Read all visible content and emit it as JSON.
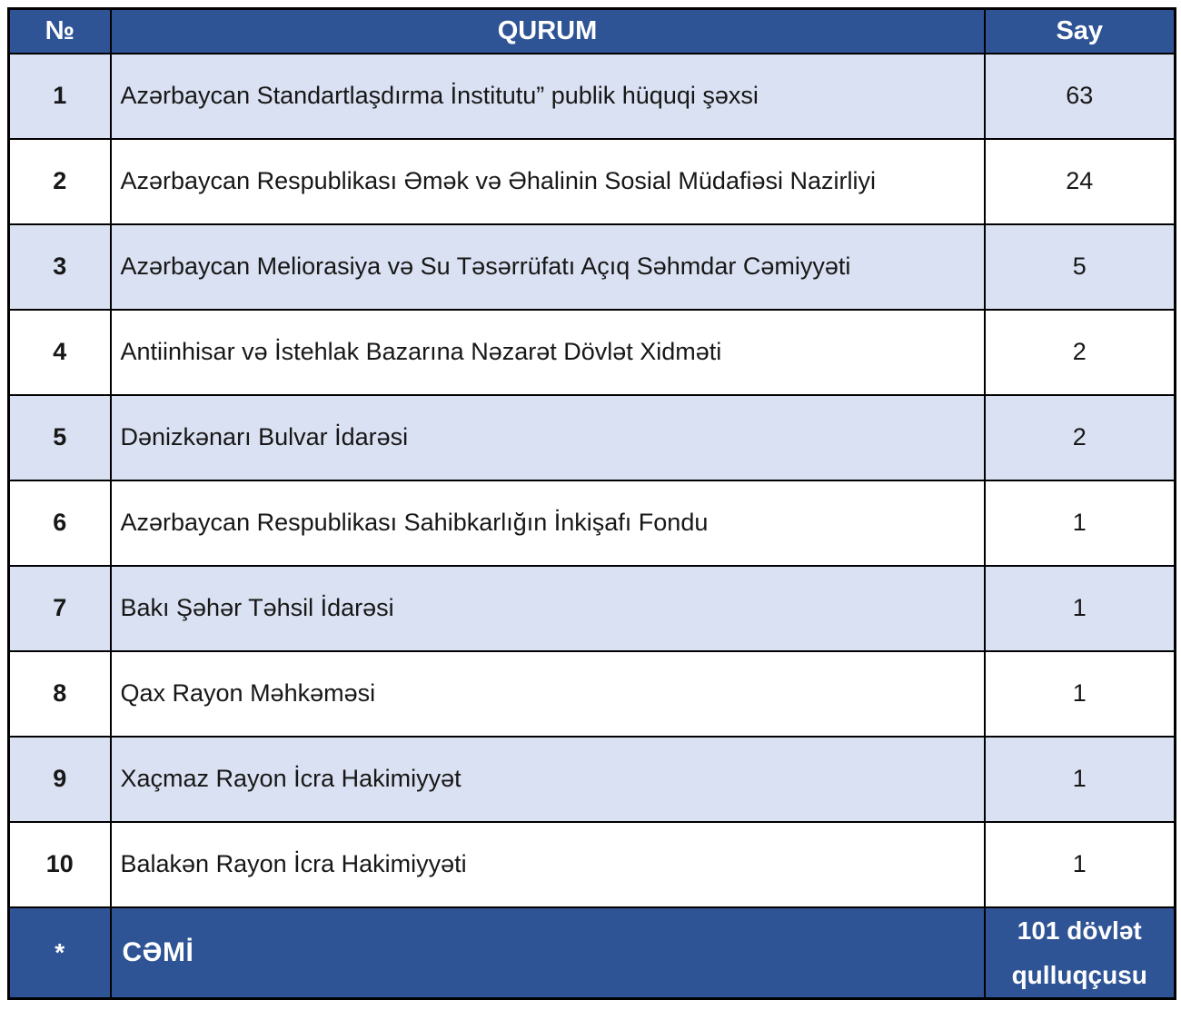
{
  "colors": {
    "header_bg": "#2F5496",
    "header_text": "#FFFFFF",
    "row_alt_bg": "#DAE1F2",
    "row_bg": "#FFFFFF",
    "border": "#000000",
    "text": "#171717"
  },
  "table": {
    "header": {
      "no": "№",
      "qurum": "QURUM",
      "say": "Say"
    },
    "rows": [
      {
        "no": "1",
        "qurum": "Azərbaycan Standartlaşdırma İnstitutu” publik hüquqi şəxsi",
        "say": "63"
      },
      {
        "no": "2",
        "qurum": "Azərbaycan Respublikası Əmək və Əhalinin Sosial Müdafiəsi Nazirliyi",
        "say": "24"
      },
      {
        "no": "3",
        "qurum": "Azərbaycan Meliorasiya və Su Təsərrüfatı Açıq Səhmdar Cəmiyyəti",
        "say": "5"
      },
      {
        "no": "4",
        "qurum": "Antiinhisar və İstehlak Bazarına Nəzarət Dövlət Xidməti",
        "say": "2"
      },
      {
        "no": "5",
        "qurum": "Dənizkənarı Bulvar İdarəsi",
        "say": "2"
      },
      {
        "no": "6",
        "qurum": "Azərbaycan Respublikası Sahibkarlığın İnkişafı Fondu",
        "say": "1"
      },
      {
        "no": "7",
        "qurum": "Bakı Şəhər Təhsil İdarəsi",
        "say": "1"
      },
      {
        "no": "8",
        "qurum": "Qax Rayon Məhkəməsi",
        "say": "1"
      },
      {
        "no": "9",
        "qurum": "Xaçmaz Rayon İcra Hakimiyyət",
        "say": "1"
      },
      {
        "no": "10",
        "qurum": "Balakən Rayon İcra Hakimiyyəti",
        "say": "1"
      }
    ],
    "footer": {
      "no": "*",
      "label": "CƏMİ",
      "say": "101 dövlət qulluqçusu"
    }
  }
}
